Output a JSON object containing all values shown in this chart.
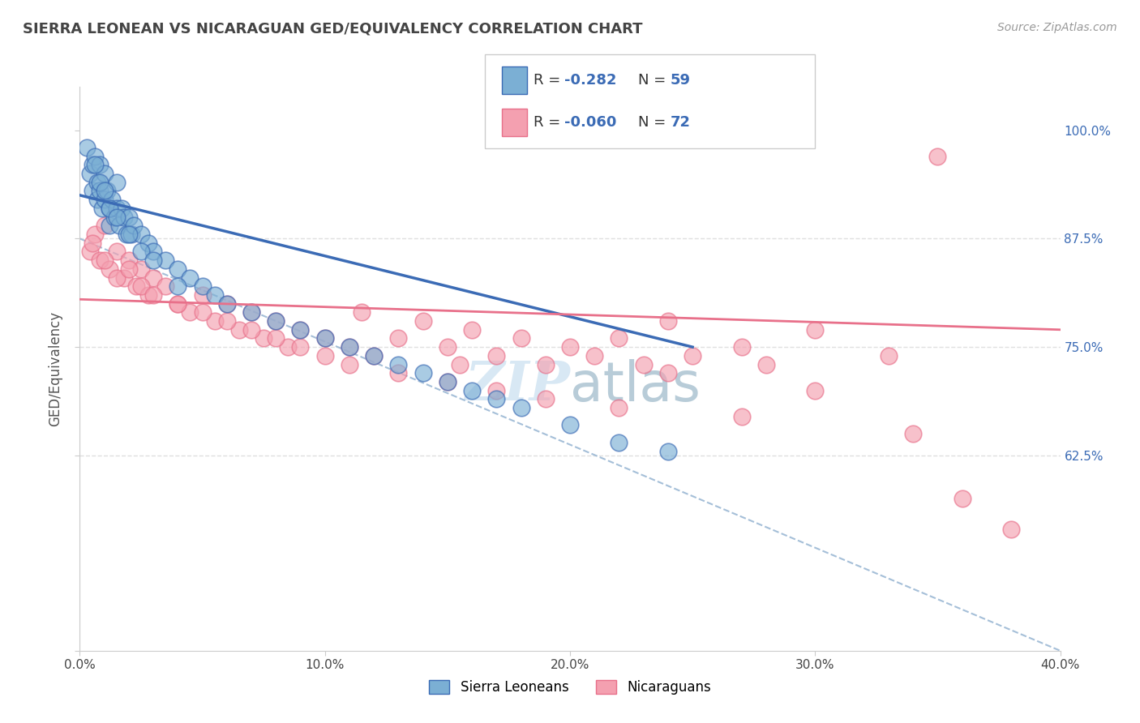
{
  "title": "SIERRA LEONEAN VS NICARAGUAN GED/EQUIVALENCY CORRELATION CHART",
  "source": "Source: ZipAtlas.com",
  "ylabel_label": "GED/Equivalency",
  "R1": "-0.282",
  "N1": "59",
  "R2": "-0.060",
  "N2": "72",
  "color_blue": "#7BAFD4",
  "color_pink": "#F4A0B0",
  "color_blue_dark": "#3B6BB5",
  "color_pink_dark": "#E8708A",
  "color_dashed": "#9BB8D4",
  "background_color": "#FFFFFF",
  "grid_color": "#E0E0E0",
  "title_color": "#444444",
  "watermark_color": "#D8E8F4",
  "legend_label1": "Sierra Leoneans",
  "legend_label2": "Nicaraguans",
  "xlim": [
    0.0,
    40.0
  ],
  "ylim": [
    40.0,
    105.0
  ],
  "blue_line_x": [
    0,
    25
  ],
  "blue_line_y": [
    92.5,
    75.0
  ],
  "pink_line_x": [
    0,
    40
  ],
  "pink_line_y": [
    80.5,
    77.0
  ],
  "dash_line_x": [
    0,
    40
  ],
  "dash_line_y": [
    87.5,
    40.0
  ],
  "sierra_x": [
    0.3,
    0.4,
    0.5,
    0.5,
    0.6,
    0.7,
    0.7,
    0.8,
    0.8,
    0.9,
    1.0,
    1.0,
    1.1,
    1.2,
    1.2,
    1.3,
    1.4,
    1.5,
    1.5,
    1.6,
    1.7,
    1.8,
    1.9,
    2.0,
    2.1,
    2.2,
    2.5,
    2.8,
    3.0,
    3.5,
    4.0,
    4.5,
    5.0,
    5.5,
    6.0,
    7.0,
    8.0,
    9.0,
    10.0,
    11.0,
    12.0,
    13.0,
    14.0,
    15.0,
    16.0,
    17.0,
    18.0,
    20.0,
    22.0,
    24.0,
    0.6,
    0.8,
    1.0,
    1.2,
    1.5,
    2.0,
    2.5,
    3.0,
    4.0
  ],
  "sierra_y": [
    98.0,
    95.0,
    96.0,
    93.0,
    97.0,
    94.0,
    92.0,
    96.0,
    93.0,
    91.0,
    95.0,
    92.0,
    93.0,
    91.0,
    89.0,
    92.0,
    90.0,
    94.0,
    91.0,
    89.0,
    91.0,
    90.0,
    88.0,
    90.0,
    88.0,
    89.0,
    88.0,
    87.0,
    86.0,
    85.0,
    84.0,
    83.0,
    82.0,
    81.0,
    80.0,
    79.0,
    78.0,
    77.0,
    76.0,
    75.0,
    74.0,
    73.0,
    72.0,
    71.0,
    70.0,
    69.0,
    68.0,
    66.0,
    64.0,
    63.0,
    96.0,
    94.0,
    93.0,
    91.0,
    90.0,
    88.0,
    86.0,
    85.0,
    82.0
  ],
  "nicaraguan_x": [
    0.4,
    0.6,
    0.8,
    1.0,
    1.2,
    1.5,
    1.8,
    2.0,
    2.3,
    2.5,
    2.8,
    3.0,
    3.5,
    4.0,
    4.5,
    5.0,
    5.5,
    6.0,
    6.5,
    7.0,
    7.5,
    8.0,
    8.5,
    9.0,
    10.0,
    11.0,
    11.5,
    12.0,
    13.0,
    14.0,
    15.0,
    15.5,
    16.0,
    17.0,
    18.0,
    19.0,
    20.0,
    21.0,
    22.0,
    23.0,
    24.0,
    25.0,
    27.0,
    28.0,
    30.0,
    33.0,
    35.0,
    0.5,
    1.0,
    1.5,
    2.0,
    2.5,
    3.0,
    4.0,
    5.0,
    6.0,
    7.0,
    8.0,
    9.0,
    10.0,
    11.0,
    13.0,
    15.0,
    17.0,
    19.0,
    22.0,
    24.0,
    27.0,
    30.0,
    34.0,
    36.0,
    38.0
  ],
  "nicaraguan_y": [
    86.0,
    88.0,
    85.0,
    89.0,
    84.0,
    86.0,
    83.0,
    85.0,
    82.0,
    84.0,
    81.0,
    83.0,
    82.0,
    80.0,
    79.0,
    81.0,
    78.0,
    80.0,
    77.0,
    79.0,
    76.0,
    78.0,
    75.0,
    77.0,
    76.0,
    75.0,
    79.0,
    74.0,
    76.0,
    78.0,
    75.0,
    73.0,
    77.0,
    74.0,
    76.0,
    73.0,
    75.0,
    74.0,
    76.0,
    73.0,
    78.0,
    74.0,
    75.0,
    73.0,
    77.0,
    74.0,
    97.0,
    87.0,
    85.0,
    83.0,
    84.0,
    82.0,
    81.0,
    80.0,
    79.0,
    78.0,
    77.0,
    76.0,
    75.0,
    74.0,
    73.0,
    72.0,
    71.0,
    70.0,
    69.0,
    68.0,
    72.0,
    67.0,
    70.0,
    65.0,
    57.5,
    54.0
  ]
}
